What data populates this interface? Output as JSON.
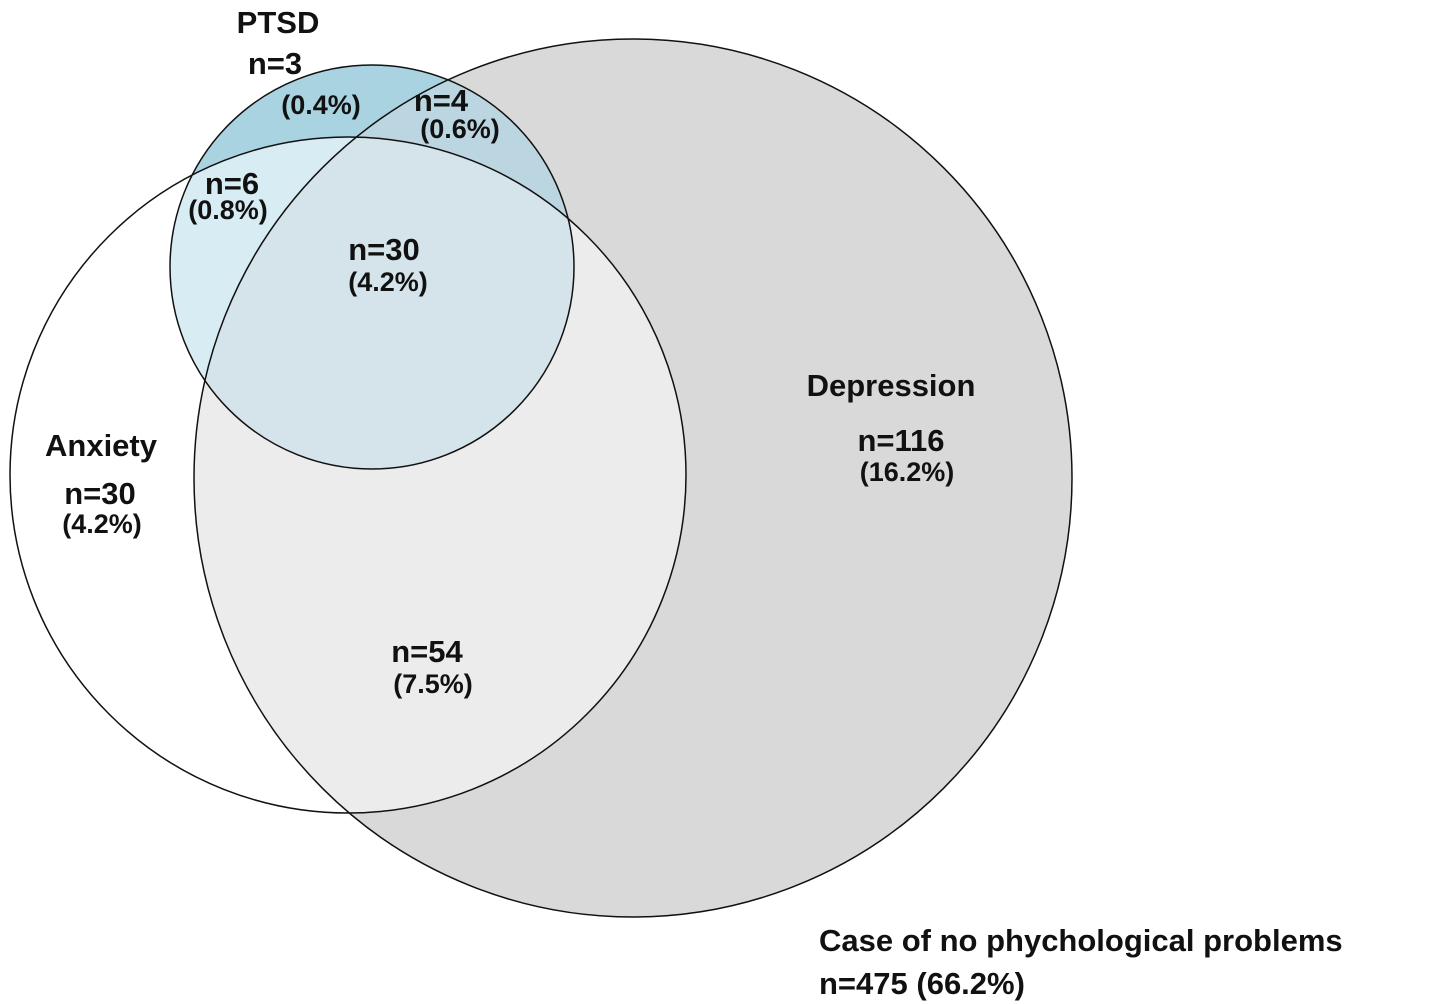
{
  "sets": [
    {
      "name": "PTSD",
      "count": "n=3",
      "pct": "(0.4%)"
    },
    {
      "name": "Depression",
      "count": "n=116",
      "pct": "(16.2%)"
    },
    {
      "name": "Anxiety",
      "count": "n=30",
      "pct": "(4.2%)"
    }
  ],
  "overlaps": [
    {
      "sets": "PTSD+Depression",
      "count": "n=4",
      "pct": "(0.6%)"
    },
    {
      "sets": "PTSD+Anxiety",
      "count": "n=6",
      "pct": "(0.8%)"
    },
    {
      "sets": "PTSD+Anxiety+Depression",
      "count": "n=30",
      "pct": "(4.2%)"
    },
    {
      "sets": "Anxiety+Depression",
      "count": "n=54",
      "pct": "(7.5%)"
    }
  ],
  "none": {
    "title": "Case of no phychological problems",
    "count": "n=475 (66.2%)"
  }
}
